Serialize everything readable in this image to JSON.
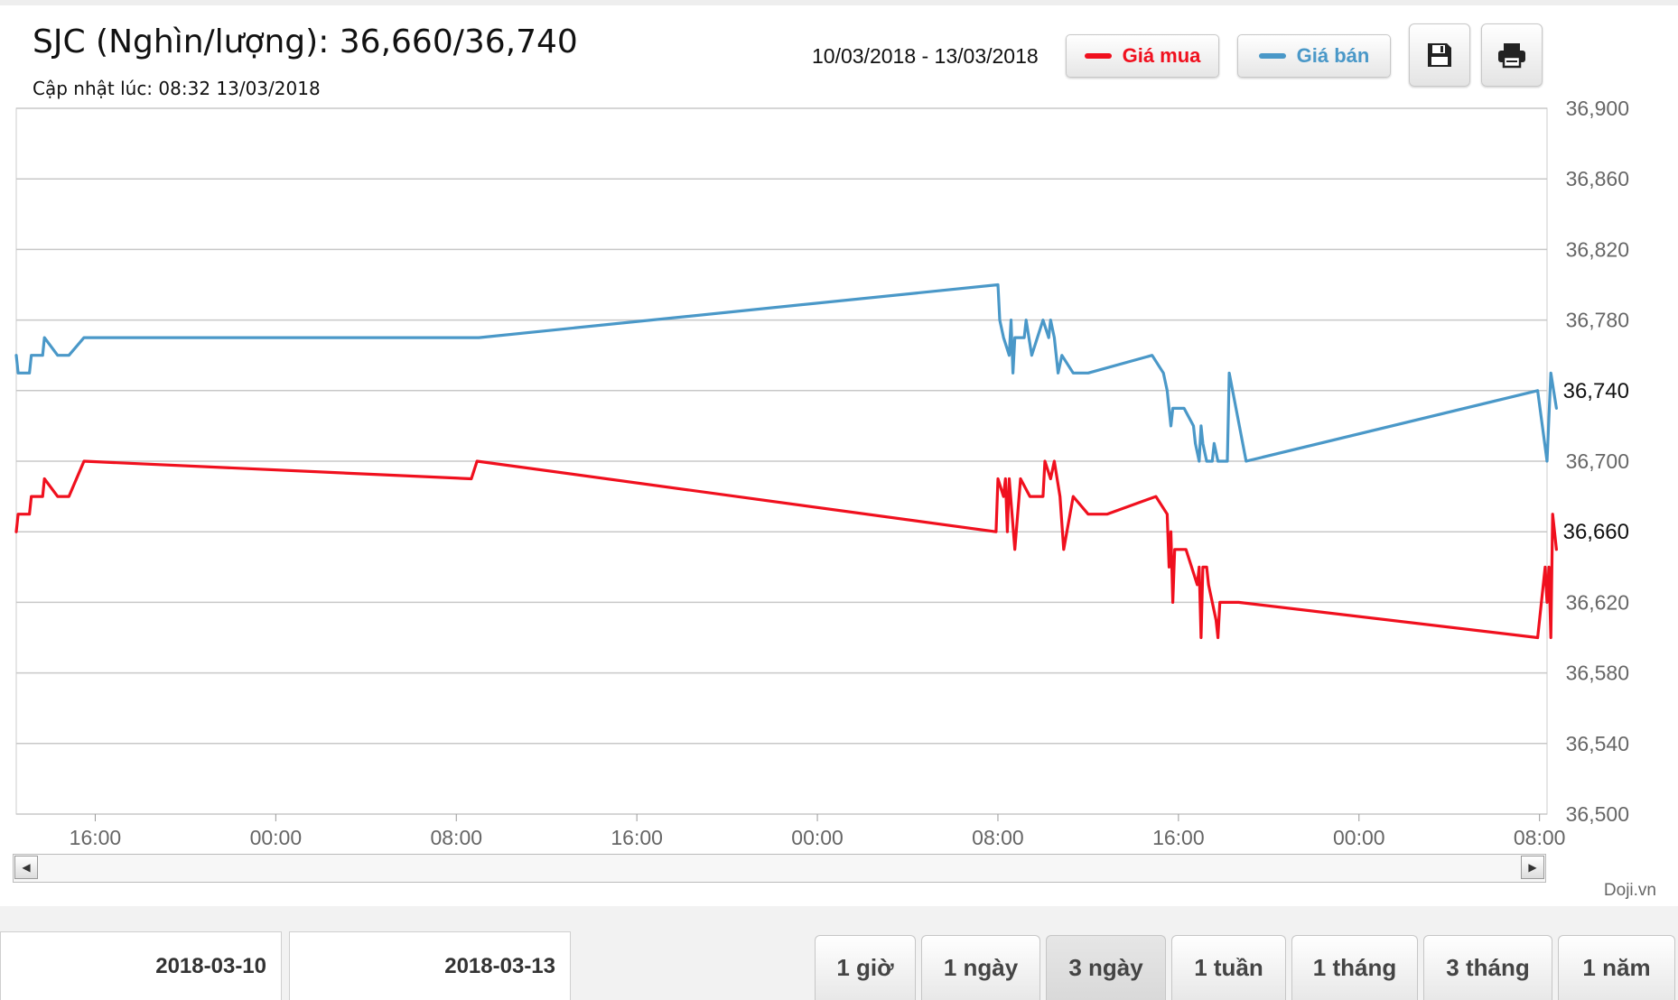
{
  "header": {
    "title": "SJC (Nghìn/lượng): 36,660/36,740",
    "updated": "Cập nhật lúc: 08:32 13/03/2018",
    "date_range": "10/03/2018 - 13/03/2018"
  },
  "legend": {
    "buy_label": "Giá mua",
    "sell_label": "Giá bán",
    "buy_color": "#f0101e",
    "sell_color": "#4a98c8"
  },
  "toolbar": {
    "save_icon": "save-icon",
    "print_icon": "print-icon"
  },
  "footer": {
    "credit": "Doji.vn",
    "from_date": "2018-03-10",
    "to_date": "2018-03-13",
    "ranges": [
      "1 giờ",
      "1 ngày",
      "3 ngày",
      "1 tuần",
      "1 tháng",
      "3 tháng",
      "1 năm"
    ],
    "active_range": "3 ngày"
  },
  "chart_data": {
    "type": "line",
    "title": "",
    "xlabel": "",
    "ylabel": "",
    "ylim": [
      36500,
      36900
    ],
    "xlim": [
      "2018-03-10 12:30",
      "2018-03-13 08:20"
    ],
    "y_ticks": [
      36900,
      36860,
      36820,
      36780,
      36740,
      36700,
      36660,
      36620,
      36580,
      36540,
      36500
    ],
    "y_ticks_highlight": [
      36740,
      36660
    ],
    "x_ticks": [
      {
        "label": "16:00",
        "t": "2018-03-10 16:00"
      },
      {
        "label": "00:00",
        "t": "2018-03-11 00:00"
      },
      {
        "label": "08:00",
        "t": "2018-03-11 08:00"
      },
      {
        "label": "16:00",
        "t": "2018-03-11 16:00"
      },
      {
        "label": "00:00",
        "t": "2018-03-12 00:00"
      },
      {
        "label": "08:00",
        "t": "2018-03-12 08:00"
      },
      {
        "label": "16:00",
        "t": "2018-03-12 16:00"
      },
      {
        "label": "00:00",
        "t": "2018-03-13 00:00"
      },
      {
        "label": "08:00",
        "t": "2018-03-13 08:00"
      }
    ],
    "grid": true,
    "legend": "top",
    "series": [
      {
        "name": "Giá mua",
        "color": "#f0101e",
        "points": [
          [
            "2018-03-10 12:30",
            36660
          ],
          [
            "2018-03-10 12:35",
            36670
          ],
          [
            "2018-03-10 13:05",
            36670
          ],
          [
            "2018-03-10 13:10",
            36680
          ],
          [
            "2018-03-10 13:40",
            36680
          ],
          [
            "2018-03-10 13:45",
            36690
          ],
          [
            "2018-03-10 14:20",
            36680
          ],
          [
            "2018-03-10 14:50",
            36680
          ],
          [
            "2018-03-10 15:30",
            36700
          ],
          [
            "2018-03-11 08:40",
            36690
          ],
          [
            "2018-03-11 08:55",
            36700
          ],
          [
            "2018-03-12 07:55",
            36660
          ],
          [
            "2018-03-12 08:00",
            36690
          ],
          [
            "2018-03-12 08:15",
            36680
          ],
          [
            "2018-03-12 08:20",
            36690
          ],
          [
            "2018-03-12 08:25",
            36660
          ],
          [
            "2018-03-12 08:30",
            36690
          ],
          [
            "2018-03-12 08:45",
            36650
          ],
          [
            "2018-03-12 09:00",
            36690
          ],
          [
            "2018-03-12 09:25",
            36680
          ],
          [
            "2018-03-12 09:30",
            36680
          ],
          [
            "2018-03-12 10:00",
            36680
          ],
          [
            "2018-03-12 10:05",
            36700
          ],
          [
            "2018-03-12 10:20",
            36690
          ],
          [
            "2018-03-12 10:30",
            36700
          ],
          [
            "2018-03-12 10:45",
            36680
          ],
          [
            "2018-03-12 10:55",
            36650
          ],
          [
            "2018-03-12 11:20",
            36680
          ],
          [
            "2018-03-12 12:00",
            36670
          ],
          [
            "2018-03-12 12:50",
            36670
          ],
          [
            "2018-03-12 15:00",
            36680
          ],
          [
            "2018-03-12 15:30",
            36670
          ],
          [
            "2018-03-12 15:35",
            36640
          ],
          [
            "2018-03-12 15:40",
            36660
          ],
          [
            "2018-03-12 15:45",
            36620
          ],
          [
            "2018-03-12 15:50",
            36650
          ],
          [
            "2018-03-12 16:20",
            36650
          ],
          [
            "2018-03-12 16:50",
            36630
          ],
          [
            "2018-03-12 16:55",
            36640
          ],
          [
            "2018-03-12 17:00",
            36600
          ],
          [
            "2018-03-12 17:05",
            36640
          ],
          [
            "2018-03-12 17:15",
            36640
          ],
          [
            "2018-03-12 17:20",
            36630
          ],
          [
            "2018-03-12 17:40",
            36610
          ],
          [
            "2018-03-12 17:45",
            36600
          ],
          [
            "2018-03-12 17:50",
            36620
          ],
          [
            "2018-03-12 18:40",
            36620
          ],
          [
            "2018-03-13 07:55",
            36600
          ],
          [
            "2018-03-13 08:15",
            36640
          ],
          [
            "2018-03-13 08:20",
            36620
          ],
          [
            "2018-03-13 08:25",
            36640
          ],
          [
            "2018-03-13 08:30",
            36600
          ],
          [
            "2018-03-13 08:35",
            36670
          ],
          [
            "2018-03-13 08:45",
            36650
          ]
        ]
      },
      {
        "name": "Giá bán",
        "color": "#4a98c8",
        "points": [
          [
            "2018-03-10 12:30",
            36760
          ],
          [
            "2018-03-10 12:35",
            36750
          ],
          [
            "2018-03-10 13:05",
            36750
          ],
          [
            "2018-03-10 13:10",
            36760
          ],
          [
            "2018-03-10 13:40",
            36760
          ],
          [
            "2018-03-10 13:45",
            36770
          ],
          [
            "2018-03-10 14:20",
            36760
          ],
          [
            "2018-03-10 14:50",
            36760
          ],
          [
            "2018-03-10 15:30",
            36770
          ],
          [
            "2018-03-11 09:00",
            36770
          ],
          [
            "2018-03-12 08:00",
            36800
          ],
          [
            "2018-03-12 08:05",
            36780
          ],
          [
            "2018-03-12 08:15",
            36770
          ],
          [
            "2018-03-12 08:30",
            36760
          ],
          [
            "2018-03-12 08:35",
            36780
          ],
          [
            "2018-03-12 08:40",
            36750
          ],
          [
            "2018-03-12 08:45",
            36770
          ],
          [
            "2018-03-12 09:10",
            36770
          ],
          [
            "2018-03-12 09:15",
            36780
          ],
          [
            "2018-03-12 09:30",
            36760
          ],
          [
            "2018-03-12 10:00",
            36780
          ],
          [
            "2018-03-12 10:15",
            36770
          ],
          [
            "2018-03-12 10:20",
            36780
          ],
          [
            "2018-03-12 10:30",
            36770
          ],
          [
            "2018-03-12 10:40",
            36750
          ],
          [
            "2018-03-12 10:50",
            36760
          ],
          [
            "2018-03-12 11:20",
            36750
          ],
          [
            "2018-03-12 12:00",
            36750
          ],
          [
            "2018-03-12 14:50",
            36760
          ],
          [
            "2018-03-12 15:20",
            36750
          ],
          [
            "2018-03-12 15:30",
            36740
          ],
          [
            "2018-03-12 15:40",
            36720
          ],
          [
            "2018-03-12 15:45",
            36730
          ],
          [
            "2018-03-12 16:15",
            36730
          ],
          [
            "2018-03-12 16:40",
            36720
          ],
          [
            "2018-03-12 16:45",
            36710
          ],
          [
            "2018-03-12 16:55",
            36700
          ],
          [
            "2018-03-12 17:00",
            36720
          ],
          [
            "2018-03-12 17:05",
            36710
          ],
          [
            "2018-03-12 17:15",
            36700
          ],
          [
            "2018-03-12 17:25",
            36700
          ],
          [
            "2018-03-12 17:30",
            36700
          ],
          [
            "2018-03-12 17:35",
            36710
          ],
          [
            "2018-03-12 17:45",
            36700
          ],
          [
            "2018-03-12 18:10",
            36700
          ],
          [
            "2018-03-12 18:15",
            36750
          ],
          [
            "2018-03-12 19:00",
            36700
          ],
          [
            "2018-03-13 07:55",
            36740
          ],
          [
            "2018-03-13 08:20",
            36700
          ],
          [
            "2018-03-13 08:30",
            36750
          ],
          [
            "2018-03-13 08:45",
            36730
          ]
        ]
      }
    ]
  }
}
